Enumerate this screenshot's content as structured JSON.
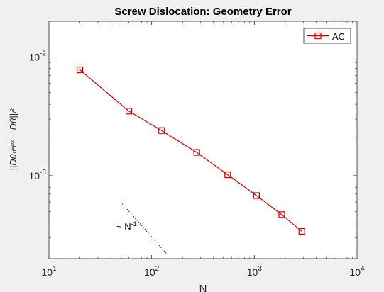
{
  "chart_data": {
    "type": "line",
    "title": "Screw Dislocation: Geometry Error",
    "xlabel": "N",
    "ylabel": "||Dūₙᵃᵖˣ − Dū||ₗ²",
    "xscale": "log",
    "yscale": "log",
    "xlim": [
      10,
      10000
    ],
    "ylim": [
      0.0002,
      0.02
    ],
    "grid": false,
    "legend_location": "top-right",
    "xticks": [
      {
        "value": 10,
        "base": "10",
        "exp": "1"
      },
      {
        "value": 100,
        "base": "10",
        "exp": "2"
      },
      {
        "value": 1000,
        "base": "10",
        "exp": "3"
      },
      {
        "value": 10000,
        "base": "10",
        "exp": "4"
      }
    ],
    "yticks": [
      {
        "value": 0.001,
        "base": "10",
        "exp": "-3"
      },
      {
        "value": 0.01,
        "base": "10",
        "exp": "-2"
      }
    ],
    "series": [
      {
        "name": "AC",
        "color": "#cc0000",
        "marker": "square",
        "x": [
          20,
          60,
          125,
          275,
          550,
          1050,
          1850,
          2900
        ],
        "y": [
          0.0078,
          0.0035,
          0.0024,
          0.00157,
          0.00102,
          0.00068,
          0.00047,
          0.00034
        ]
      }
    ],
    "reference_line": {
      "label_base": "~ N",
      "label_exp": "-1",
      "style": "dotted",
      "color": "#000000",
      "x": [
        50,
        140
      ],
      "y": [
        0.0006,
        0.00022
      ]
    }
  }
}
